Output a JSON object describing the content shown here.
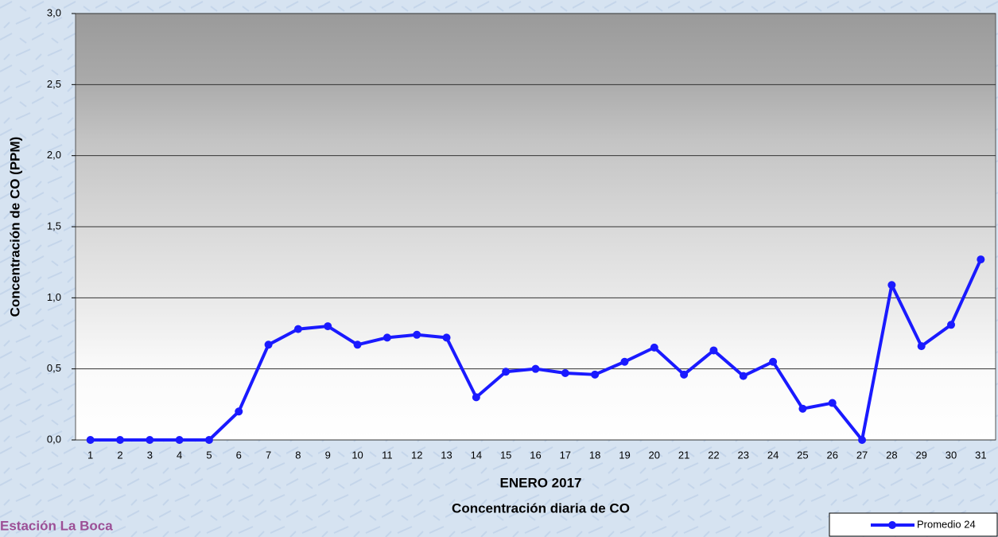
{
  "chart_data": {
    "type": "line",
    "title": "ENERO 2017",
    "subtitle": "Concentración diaria de CO",
    "y_label": "Concentración de CO (PPM)",
    "station": "Estación La Boca",
    "categories": [
      "1",
      "2",
      "3",
      "4",
      "5",
      "6",
      "7",
      "8",
      "9",
      "10",
      "11",
      "12",
      "13",
      "14",
      "15",
      "16",
      "17",
      "18",
      "19",
      "20",
      "21",
      "22",
      "23",
      "24",
      "25",
      "26",
      "27",
      "28",
      "29",
      "30",
      "31"
    ],
    "series": [
      {
        "name": "Promedio 24",
        "color": "#1a1aff",
        "values": [
          0,
          0,
          0,
          0,
          0,
          0.2,
          0.67,
          0.78,
          0.8,
          0.67,
          0.72,
          0.74,
          0.72,
          0.3,
          0.48,
          0.5,
          0.47,
          0.46,
          0.55,
          0.65,
          0.46,
          0.63,
          0.45,
          0.55,
          0.22,
          0.26,
          0,
          1.09,
          0.66,
          0.81,
          1.27
        ]
      }
    ],
    "ylim": [
      0,
      3
    ],
    "yticks": [
      {
        "value": 0,
        "label": "0,0"
      },
      {
        "value": 0.5,
        "label": "0,5"
      },
      {
        "value": 1,
        "label": "1,0"
      },
      {
        "value": 1.5,
        "label": "1,5"
      },
      {
        "value": 2,
        "label": "2,0"
      },
      {
        "value": 2.5,
        "label": "2,5"
      },
      {
        "value": 3,
        "label": "3,0"
      }
    ],
    "grid": true,
    "legend": "bottom-right"
  }
}
